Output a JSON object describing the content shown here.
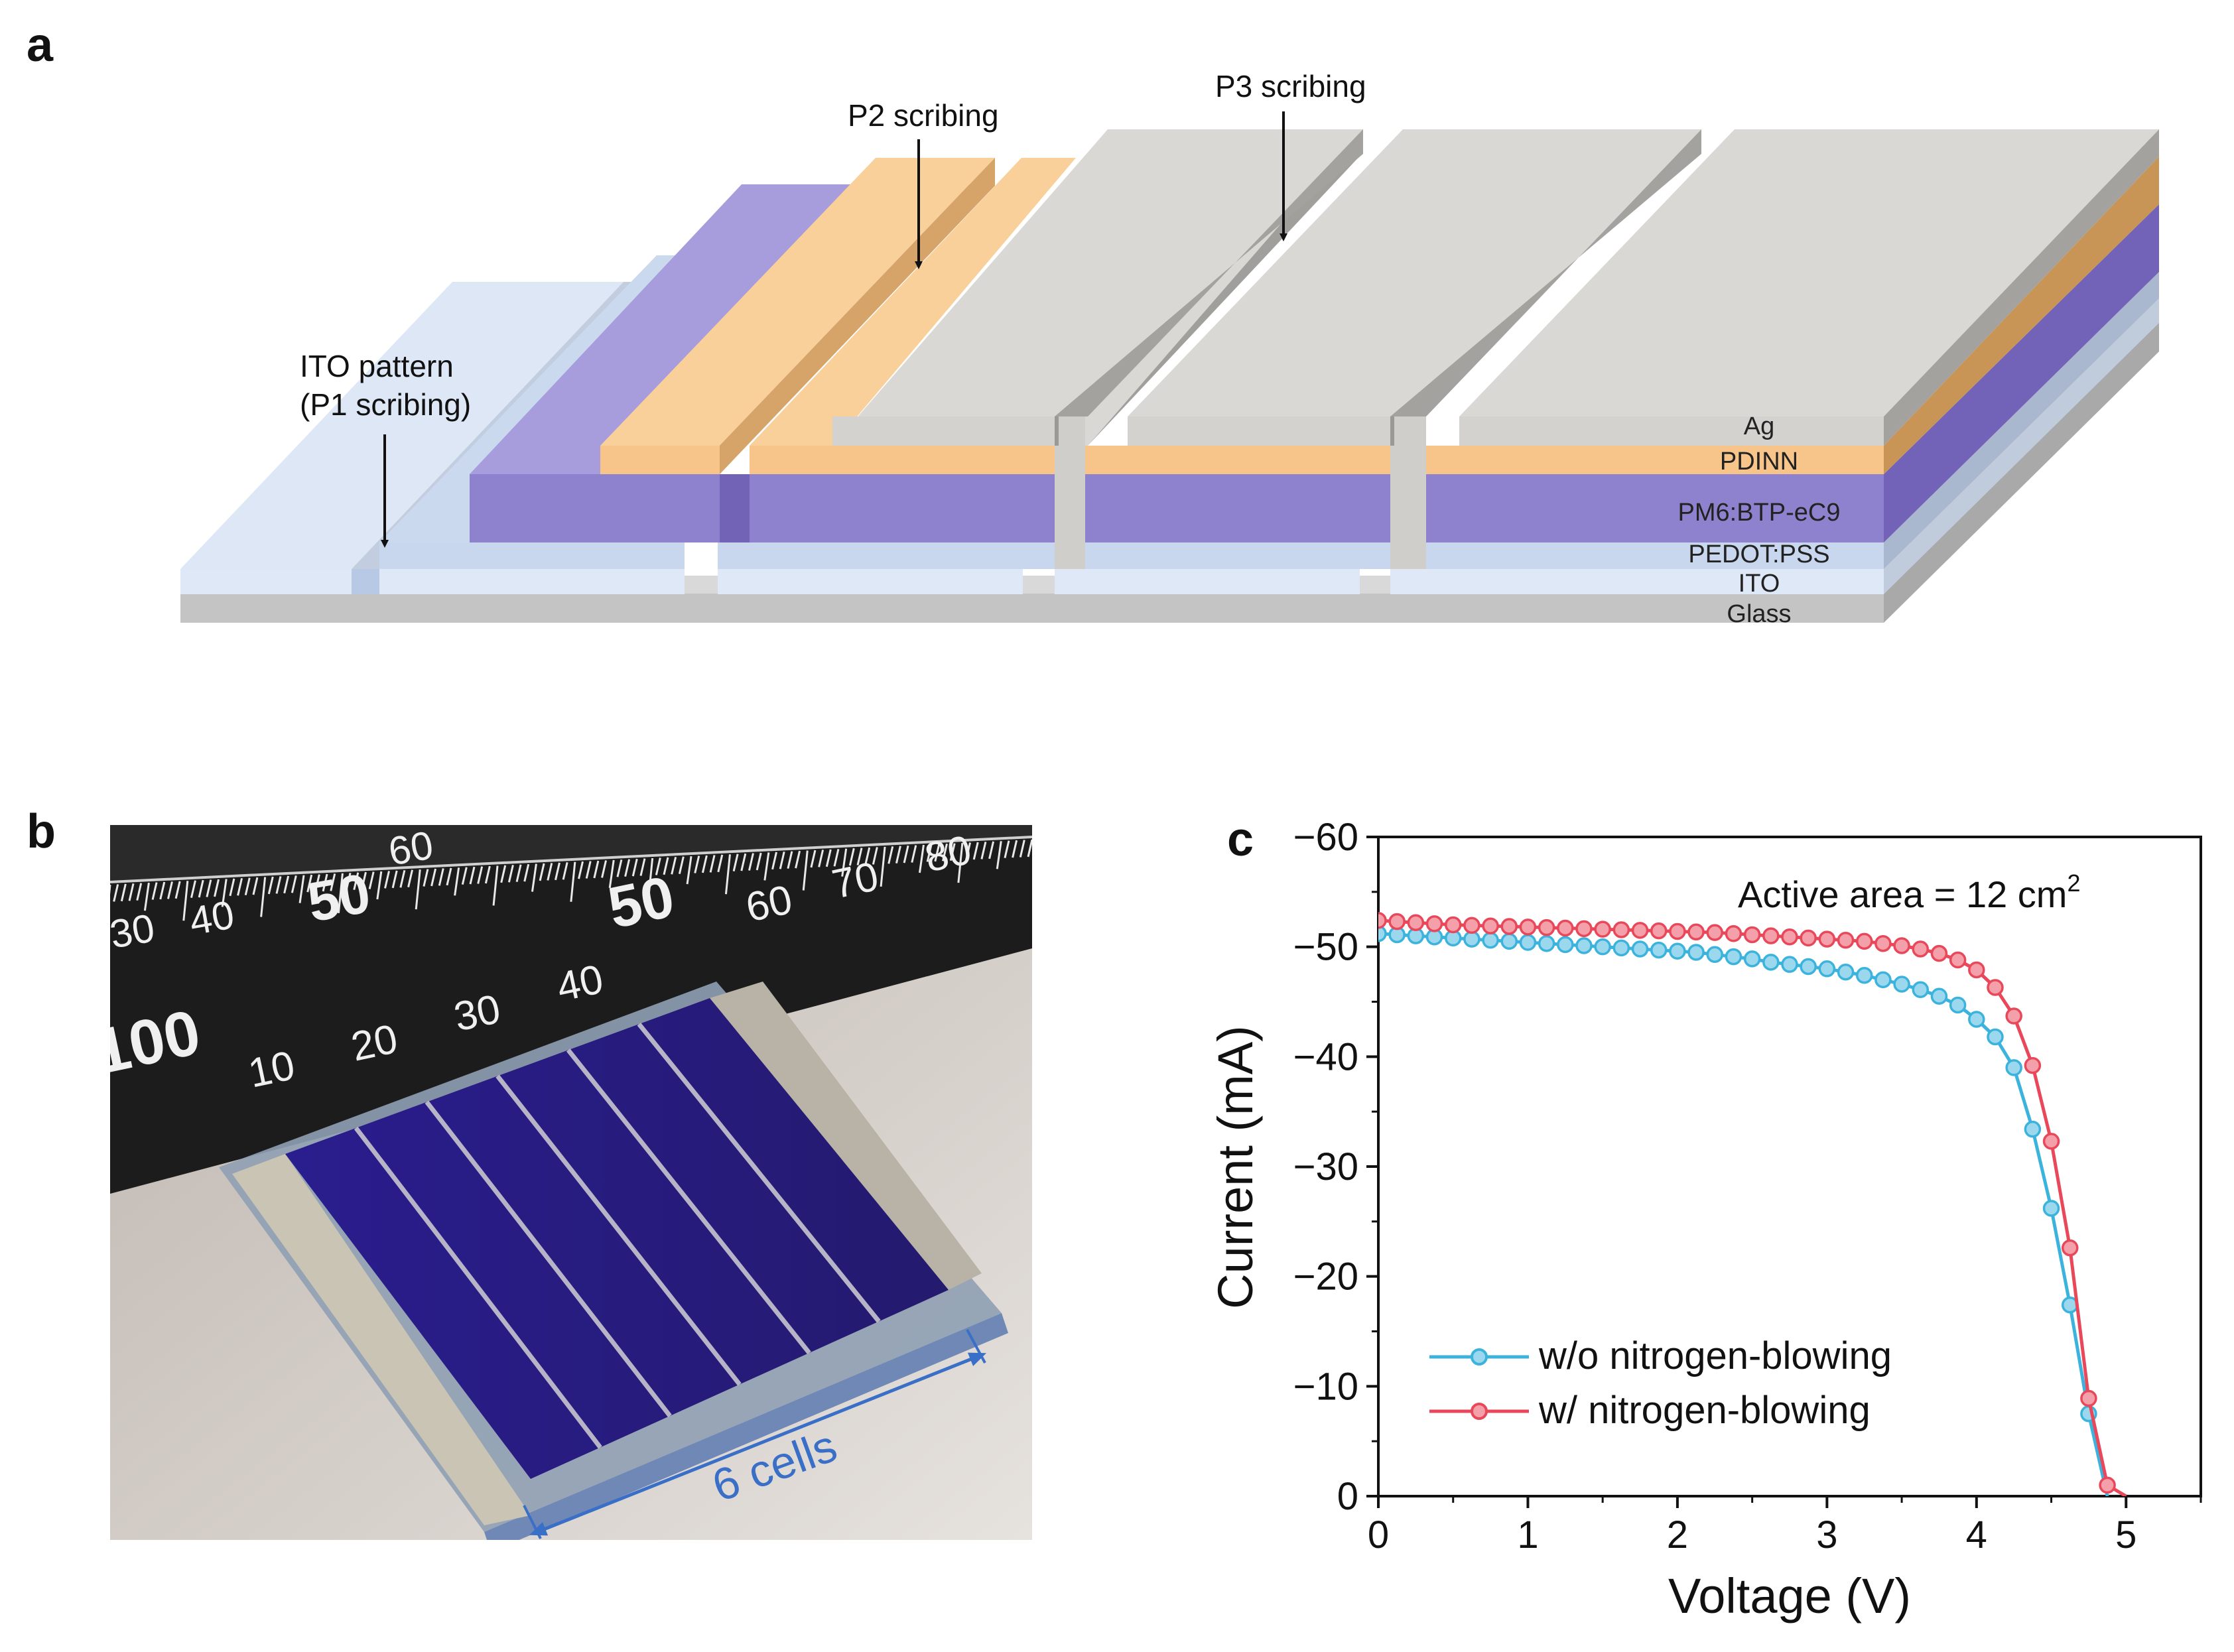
{
  "panel_labels": {
    "a": "a",
    "b": "b",
    "c": "c"
  },
  "diagram": {
    "callouts": {
      "p1_line1": "ITO pattern",
      "p1_line2": "(P1 scribing)",
      "p2": "P2 scribing",
      "p3": "P3 scribing"
    },
    "layers": {
      "ag": "Ag",
      "pdinn": "PDINN",
      "active": "PM6:BTP-eC9",
      "pedot": "PEDOT:PSS",
      "ito": "ITO",
      "glass": "Glass"
    },
    "colors": {
      "glass": "#c6c6c6",
      "ito": "#dfe8f6",
      "pedot": "#c8d7ee",
      "active": "#8e82cf",
      "pdinn": "#f7c48a",
      "ag": "#d3d2cf"
    }
  },
  "photo": {
    "label": "6 cells",
    "ruler_numbers_back": [
      "30",
      "40",
      "50",
      "60"
    ],
    "ruler_numbers_front": [
      "100",
      "10",
      "20",
      "30",
      "40",
      "50",
      "60",
      "70",
      "80"
    ],
    "colors": {
      "ruler": "#1c1c1c",
      "cells": "#2a1f88",
      "annotation": "#3a6fc8"
    }
  },
  "chart_data": {
    "type": "line",
    "xlabel": "Voltage (V)",
    "ylabel": "Current (mA)",
    "annotation": "Active area = 12 cm",
    "annotation_sup": "2",
    "xlim": [
      0,
      5.5
    ],
    "ylim": [
      0,
      -60
    ],
    "x_ticks": [
      "0",
      "1",
      "2",
      "3",
      "4",
      "5"
    ],
    "y_ticks": [
      "0",
      "−10",
      "−20",
      "−30",
      "−40",
      "−50",
      "−60"
    ],
    "legend_position": "bottom-left",
    "series": [
      {
        "name": "w/o nitrogen-blowing",
        "color": "#3bb3dd",
        "x": [
          0,
          0.125,
          0.25,
          0.375,
          0.5,
          0.625,
          0.75,
          0.875,
          1.0,
          1.125,
          1.25,
          1.375,
          1.5,
          1.625,
          1.75,
          1.875,
          2.0,
          2.125,
          2.25,
          2.375,
          2.5,
          2.625,
          2.75,
          2.875,
          3.0,
          3.125,
          3.25,
          3.375,
          3.5,
          3.625,
          3.75,
          3.875,
          4.0,
          4.125,
          4.25,
          4.375,
          4.5,
          4.625,
          4.75,
          4.875
        ],
        "y": [
          -51.2,
          -51.1,
          -51.0,
          -50.9,
          -50.8,
          -50.7,
          -50.6,
          -50.5,
          -50.4,
          -50.3,
          -50.2,
          -50.1,
          -50.0,
          -49.9,
          -49.8,
          -49.7,
          -49.6,
          -49.5,
          -49.3,
          -49.1,
          -48.9,
          -48.6,
          -48.4,
          -48.2,
          -48.0,
          -47.7,
          -47.4,
          -47.0,
          -46.6,
          -46.1,
          -45.5,
          -44.7,
          -43.4,
          -41.8,
          -39.0,
          -33.4,
          -26.2,
          -17.4,
          -7.5,
          0
        ]
      },
      {
        "name": "w/ nitrogen-blowing",
        "color": "#e8485a",
        "x": [
          0,
          0.125,
          0.25,
          0.375,
          0.5,
          0.625,
          0.75,
          0.875,
          1.0,
          1.125,
          1.25,
          1.375,
          1.5,
          1.625,
          1.75,
          1.875,
          2.0,
          2.125,
          2.25,
          2.375,
          2.5,
          2.625,
          2.75,
          2.875,
          3.0,
          3.125,
          3.25,
          3.375,
          3.5,
          3.625,
          3.75,
          3.875,
          4.0,
          4.125,
          4.25,
          4.375,
          4.5,
          4.625,
          4.75,
          4.875,
          5.0
        ],
        "y": [
          -52.4,
          -52.3,
          -52.2,
          -52.1,
          -52.0,
          -51.95,
          -51.9,
          -51.85,
          -51.8,
          -51.75,
          -51.7,
          -51.65,
          -51.6,
          -51.55,
          -51.5,
          -51.45,
          -51.4,
          -51.35,
          -51.3,
          -51.2,
          -51.1,
          -51.0,
          -50.9,
          -50.8,
          -50.7,
          -50.6,
          -50.5,
          -50.3,
          -50.1,
          -49.8,
          -49.4,
          -48.8,
          -47.9,
          -46.3,
          -43.7,
          -39.2,
          -32.3,
          -22.6,
          -8.9,
          -1.0,
          0
        ]
      }
    ]
  }
}
